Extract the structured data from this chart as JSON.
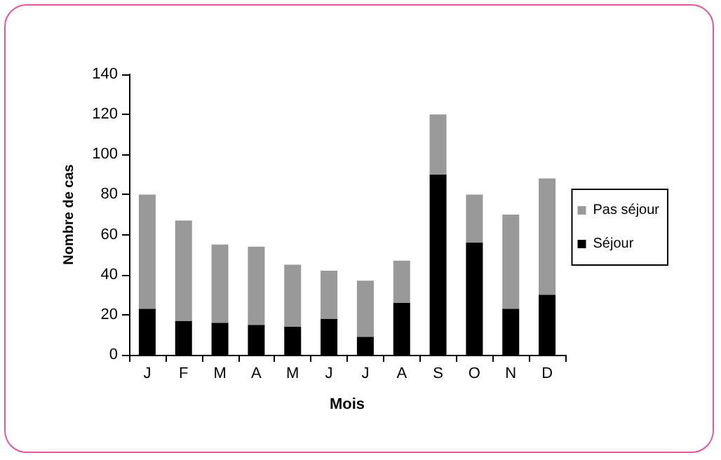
{
  "chart_data": {
    "type": "bar",
    "stacked": true,
    "xlabel": "Mois",
    "ylabel": "Nombre de cas",
    "categories": [
      "J",
      "F",
      "M",
      "A",
      "M",
      "J",
      "J",
      "A",
      "S",
      "O",
      "N",
      "D"
    ],
    "series": [
      {
        "name": "Séjour",
        "color": "#000000",
        "values": [
          23,
          17,
          16,
          15,
          14,
          18,
          9,
          26,
          90,
          56,
          23,
          30
        ]
      },
      {
        "name": "Pas séjour",
        "color": "#999999",
        "values": [
          57,
          50,
          39,
          39,
          31,
          24,
          28,
          21,
          30,
          24,
          47,
          58
        ]
      }
    ],
    "ylim": [
      0,
      140
    ],
    "yticks": [
      0,
      20,
      40,
      60,
      80,
      100,
      120,
      140
    ],
    "grid": false,
    "legend": "right"
  }
}
